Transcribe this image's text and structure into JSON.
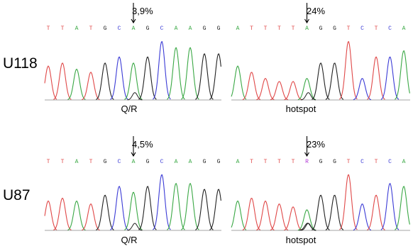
{
  "colors": {
    "A": "#3aa845",
    "T": "#e04848",
    "G": "#222222",
    "C": "#3b3bd6",
    "R": "#b23bd6"
  },
  "rows": [
    {
      "label": "U118",
      "panels": [
        {
          "caption": "Q/R",
          "bases": [
            "T",
            "T",
            "A",
            "T",
            "G",
            "C",
            "A",
            "G",
            "C",
            "A",
            "A",
            "G",
            "G"
          ],
          "marker_index": 6,
          "marker_text": "3,9%",
          "peaks": [
            0.55,
            0.6,
            0.5,
            0.45,
            0.6,
            0.7,
            0.6,
            0.7,
            0.95,
            0.85,
            0.85,
            0.75,
            0.75
          ]
        },
        {
          "caption": "hotspot",
          "bases": [
            "A",
            "T",
            "T",
            "T",
            "T",
            "A",
            "G",
            "G",
            "T",
            "C",
            "T",
            "C",
            "A"
          ],
          "marker_index": 5,
          "marker_text": "24%",
          "peaks": [
            0.55,
            0.45,
            0.35,
            0.3,
            0.3,
            0.35,
            0.6,
            0.6,
            0.95,
            0.35,
            0.7,
            0.7,
            0.8
          ]
        }
      ]
    },
    {
      "label": "U87",
      "panels": [
        {
          "caption": "Q/R",
          "bases": [
            "T",
            "T",
            "A",
            "T",
            "G",
            "C",
            "A",
            "G",
            "C",
            "A",
            "A",
            "G",
            "G"
          ],
          "marker_index": 6,
          "marker_text": "4,5%",
          "peaks": [
            0.5,
            0.55,
            0.5,
            0.45,
            0.6,
            0.75,
            0.65,
            0.75,
            0.95,
            0.8,
            0.8,
            0.7,
            0.7
          ]
        },
        {
          "caption": "hotspot",
          "bases": [
            "A",
            "T",
            "T",
            "T",
            "T",
            "R",
            "G",
            "G",
            "T",
            "C",
            "T",
            "C",
            "A"
          ],
          "marker_index": 5,
          "marker_text": "23%",
          "peaks": [
            0.5,
            0.55,
            0.5,
            0.45,
            0.4,
            0.35,
            0.6,
            0.6,
            0.95,
            0.45,
            0.6,
            0.8,
            0.75
          ]
        }
      ]
    }
  ]
}
